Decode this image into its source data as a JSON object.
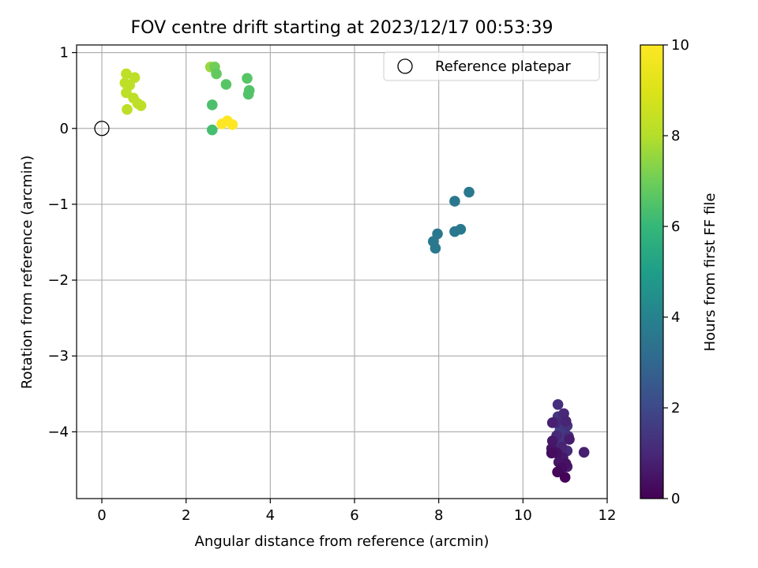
{
  "chart_data": {
    "type": "scatter",
    "title": "FOV centre drift starting at 2023/12/17 00:53:39",
    "xlabel": "Angular distance from reference (arcmin)",
    "ylabel": "Rotation from reference (arcmin)",
    "xlim": [
      -0.6,
      12
    ],
    "ylim": [
      -4.88,
      1.1
    ],
    "xticks": [
      0,
      2,
      4,
      6,
      8,
      10,
      12
    ],
    "xtick_labels": [
      "0",
      "2",
      "4",
      "6",
      "8",
      "10",
      "12"
    ],
    "yticks": [
      1,
      0,
      -1,
      -2,
      -3,
      -4
    ],
    "ytick_labels": [
      "1",
      "0",
      "−1",
      "−2",
      "−3",
      "−4"
    ],
    "grid": true,
    "legend": {
      "position": "top-right",
      "label": "Reference platepar"
    },
    "reference_point": {
      "x": 0,
      "y": 0
    },
    "colorbar": {
      "label": "Hours from first FF file",
      "colormap": "viridis",
      "range": [
        0,
        10
      ],
      "ticks": [
        0,
        2,
        4,
        6,
        8,
        10
      ],
      "tick_labels": [
        "0",
        "2",
        "4",
        "6",
        "8",
        "10"
      ]
    },
    "points": [
      {
        "x": 0.58,
        "y": 0.72,
        "c": 8.2
      },
      {
        "x": 0.78,
        "y": 0.67,
        "c": 8.2
      },
      {
        "x": 0.55,
        "y": 0.6,
        "c": 8.2
      },
      {
        "x": 0.66,
        "y": 0.57,
        "c": 8.2
      },
      {
        "x": 0.58,
        "y": 0.47,
        "c": 8.2
      },
      {
        "x": 0.75,
        "y": 0.4,
        "c": 8.2
      },
      {
        "x": 0.85,
        "y": 0.33,
        "c": 8.2
      },
      {
        "x": 0.93,
        "y": 0.3,
        "c": 8.2
      },
      {
        "x": 0.6,
        "y": 0.25,
        "c": 8.2
      },
      {
        "x": 2.58,
        "y": 0.81,
        "c": 7.6
      },
      {
        "x": 2.68,
        "y": 0.81,
        "c": 7.0
      },
      {
        "x": 2.72,
        "y": 0.72,
        "c": 6.8
      },
      {
        "x": 2.95,
        "y": 0.58,
        "c": 6.6
      },
      {
        "x": 3.45,
        "y": 0.66,
        "c": 6.6
      },
      {
        "x": 3.5,
        "y": 0.5,
        "c": 6.5
      },
      {
        "x": 3.48,
        "y": 0.45,
        "c": 6.5
      },
      {
        "x": 2.62,
        "y": 0.31,
        "c": 6.4
      },
      {
        "x": 2.62,
        "y": -0.02,
        "c": 6.3
      },
      {
        "x": 2.85,
        "y": 0.06,
        "c": 10
      },
      {
        "x": 2.98,
        "y": 0.1,
        "c": 10
      },
      {
        "x": 3.1,
        "y": 0.05,
        "c": 10
      },
      {
        "x": 8.72,
        "y": -0.84,
        "c": 3.6
      },
      {
        "x": 8.38,
        "y": -0.96,
        "c": 3.6
      },
      {
        "x": 8.52,
        "y": -1.33,
        "c": 3.6
      },
      {
        "x": 8.38,
        "y": -1.36,
        "c": 3.6
      },
      {
        "x": 7.97,
        "y": -1.39,
        "c": 3.6
      },
      {
        "x": 7.87,
        "y": -1.49,
        "c": 3.6
      },
      {
        "x": 7.92,
        "y": -1.58,
        "c": 3.6
      },
      {
        "x": 10.83,
        "y": -3.64,
        "c": 1.2
      },
      {
        "x": 10.97,
        "y": -3.76,
        "c": 1.0
      },
      {
        "x": 10.83,
        "y": -3.8,
        "c": 1.4
      },
      {
        "x": 11.02,
        "y": -3.86,
        "c": 0.9
      },
      {
        "x": 10.78,
        "y": -3.88,
        "c": 1.1
      },
      {
        "x": 10.92,
        "y": -3.9,
        "c": 1.5
      },
      {
        "x": 11.05,
        "y": -3.92,
        "c": 1.3
      },
      {
        "x": 10.7,
        "y": -3.88,
        "c": 0.8
      },
      {
        "x": 10.88,
        "y": -3.98,
        "c": 1.8
      },
      {
        "x": 11.0,
        "y": -4.02,
        "c": 1.6
      },
      {
        "x": 10.8,
        "y": -4.05,
        "c": 1.0
      },
      {
        "x": 11.08,
        "y": -4.06,
        "c": 1.2
      },
      {
        "x": 10.7,
        "y": -4.12,
        "c": 0.6
      },
      {
        "x": 10.95,
        "y": -4.1,
        "c": 1.9
      },
      {
        "x": 11.1,
        "y": -4.1,
        "c": 0.7
      },
      {
        "x": 10.85,
        "y": -4.15,
        "c": 1.4
      },
      {
        "x": 10.68,
        "y": -4.22,
        "c": 0.5
      },
      {
        "x": 10.92,
        "y": -4.2,
        "c": 0.9
      },
      {
        "x": 11.05,
        "y": -4.25,
        "c": 1.1
      },
      {
        "x": 10.8,
        "y": -4.28,
        "c": 0.4
      },
      {
        "x": 10.68,
        "y": -4.28,
        "c": 0.3
      },
      {
        "x": 11.45,
        "y": -4.27,
        "c": 0.8
      },
      {
        "x": 10.95,
        "y": -4.34,
        "c": 0.6
      },
      {
        "x": 10.85,
        "y": -4.4,
        "c": 0.5
      },
      {
        "x": 11.02,
        "y": -4.42,
        "c": 0.4
      },
      {
        "x": 11.05,
        "y": -4.46,
        "c": 0.7
      },
      {
        "x": 10.92,
        "y": -4.48,
        "c": 0.3
      },
      {
        "x": 10.82,
        "y": -4.53,
        "c": 0.2
      },
      {
        "x": 11.0,
        "y": -4.6,
        "c": 0.1
      },
      {
        "x": 10.78,
        "y": -4.22,
        "c": 1.7
      },
      {
        "x": 11.0,
        "y": -3.95,
        "c": 2.0
      },
      {
        "x": 10.9,
        "y": -4.05,
        "c": 1.5
      }
    ]
  }
}
